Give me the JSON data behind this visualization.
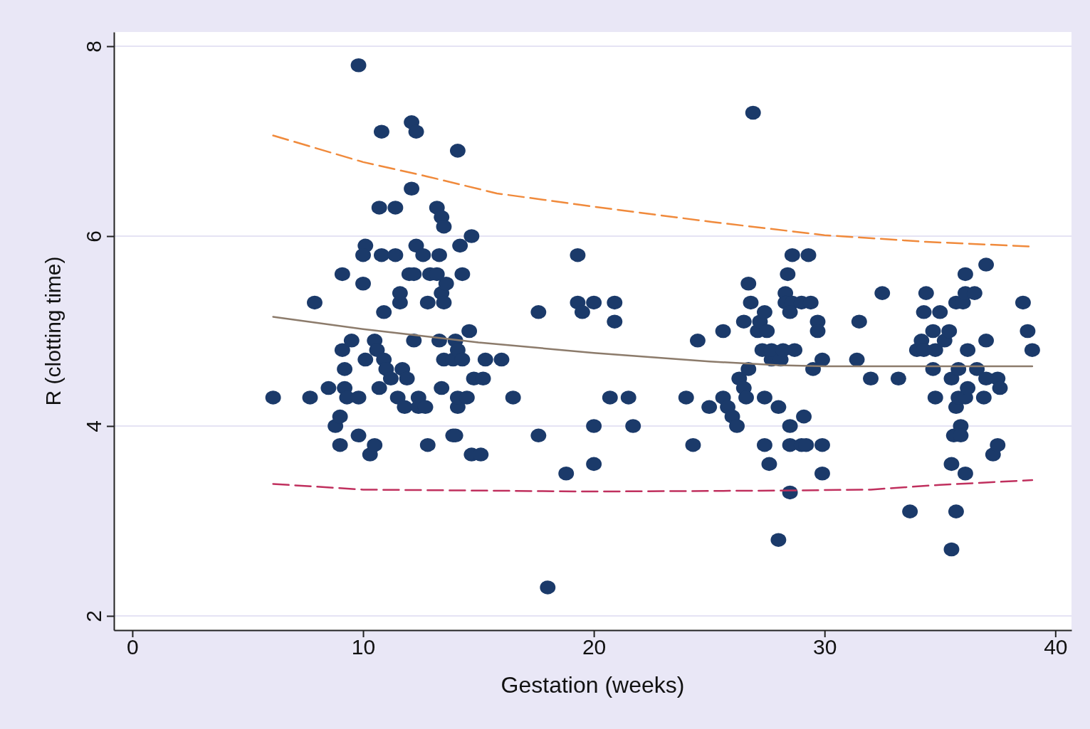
{
  "chart_data": {
    "type": "scatter",
    "xlabel": "Gestation (weeks)",
    "ylabel": "R (clotting time)",
    "xlim": [
      -0.8,
      40.7
    ],
    "ylim": [
      1.85,
      8.15
    ],
    "xticks": [
      0,
      10,
      20,
      30,
      40
    ],
    "yticks": [
      2,
      4,
      6,
      8
    ],
    "grid": "y",
    "series": [
      {
        "marker": "circle",
        "color": "#1b3a6a",
        "x": [
          6.1,
          7.7,
          7.9,
          8.5,
          8.8,
          9.0,
          9.0,
          9.1,
          9.1,
          9.2,
          9.2,
          9.3,
          9.5,
          9.8,
          9.8,
          9.8,
          10.0,
          10.1,
          10.0,
          10.1,
          10.3,
          10.5,
          10.5,
          10.6,
          10.7,
          10.8,
          10.8,
          10.7,
          10.9,
          10.9,
          11.0,
          11.2,
          11.4,
          11.4,
          11.5,
          11.6,
          11.6,
          11.7,
          11.8,
          11.9,
          12.0,
          12.1,
          12.1,
          12.2,
          12.2,
          12.3,
          12.3,
          12.4,
          12.4,
          12.6,
          12.7,
          12.8,
          12.8,
          12.9,
          13.2,
          13.2,
          13.3,
          13.3,
          13.4,
          13.4,
          13.4,
          13.5,
          13.5,
          13.5,
          13.6,
          13.9,
          13.9,
          14.0,
          14.0,
          14.1,
          14.1,
          14.1,
          14.1,
          14.2,
          14.3,
          14.3,
          14.5,
          14.6,
          14.7,
          14.7,
          14.8,
          15.1,
          15.2,
          15.3,
          16.0,
          16.5,
          17.6,
          17.6,
          18.0,
          18.8,
          19.3,
          19.3,
          19.5,
          20.0,
          20.0,
          20.0,
          20.7,
          20.9,
          20.9,
          21.5,
          21.7,
          24.0,
          24.3,
          24.5,
          25.0,
          25.6,
          25.6,
          25.8,
          26.0,
          26.2,
          26.3,
          26.5,
          26.5,
          26.6,
          26.7,
          26.7,
          26.8,
          26.9,
          27.1,
          27.2,
          27.3,
          27.4,
          27.4,
          27.4,
          27.5,
          27.6,
          27.7,
          27.7,
          28.0,
          28.0,
          28.1,
          28.2,
          28.3,
          28.3,
          28.4,
          28.5,
          28.5,
          28.6,
          28.6,
          28.7,
          28.5,
          28.5,
          29.0,
          29.0,
          29.1,
          29.2,
          29.3,
          29.4,
          29.5,
          29.7,
          29.7,
          29.9,
          29.9,
          29.9,
          31.4,
          31.5,
          32.0,
          32.5,
          33.2,
          33.7,
          34.0,
          34.2,
          34.3,
          34.3,
          34.4,
          34.7,
          34.7,
          34.8,
          34.8,
          35.0,
          35.2,
          35.4,
          35.5,
          35.5,
          35.5,
          35.6,
          35.7,
          35.7,
          35.7,
          35.8,
          35.8,
          35.9,
          35.9,
          36.0,
          36.1,
          36.1,
          36.1,
          36.1,
          36.2,
          36.2,
          36.5,
          36.6,
          36.9,
          37.0,
          37.0,
          37.0,
          37.3,
          37.5,
          37.5,
          37.6,
          38.6,
          38.8,
          39.0
        ],
        "values": [
          4.3,
          4.3,
          5.3,
          4.4,
          4.0,
          4.1,
          3.8,
          5.6,
          4.8,
          4.6,
          4.4,
          4.3,
          4.9,
          4.3,
          3.9,
          7.8,
          5.5,
          5.9,
          5.8,
          4.7,
          3.7,
          3.8,
          4.9,
          4.8,
          4.4,
          7.1,
          5.8,
          6.3,
          4.7,
          5.2,
          4.6,
          4.5,
          6.3,
          5.8,
          4.3,
          5.3,
          5.4,
          4.6,
          4.2,
          4.5,
          5.6,
          6.5,
          7.2,
          4.9,
          5.6,
          7.1,
          5.9,
          4.3,
          4.2,
          5.8,
          4.2,
          3.8,
          5.3,
          5.6,
          5.6,
          6.3,
          5.8,
          4.9,
          6.2,
          4.4,
          5.4,
          6.1,
          5.3,
          4.7,
          5.5,
          3.9,
          4.7,
          4.9,
          3.9,
          4.8,
          6.9,
          4.2,
          4.3,
          5.9,
          5.6,
          4.7,
          4.3,
          5.0,
          6.0,
          3.7,
          4.5,
          3.7,
          4.5,
          4.7,
          4.7,
          4.3,
          3.9,
          5.2,
          2.3,
          3.5,
          5.8,
          5.3,
          5.2,
          4.0,
          3.6,
          5.3,
          4.3,
          5.1,
          5.3,
          4.3,
          4.0,
          4.3,
          3.8,
          4.9,
          4.2,
          5.0,
          4.3,
          4.2,
          4.1,
          4.0,
          4.5,
          4.4,
          5.1,
          4.3,
          5.5,
          4.6,
          5.3,
          7.3,
          5.0,
          5.1,
          4.8,
          3.8,
          5.2,
          4.3,
          5.0,
          3.6,
          4.7,
          4.8,
          2.8,
          4.2,
          4.7,
          4.8,
          5.4,
          5.3,
          5.6,
          3.3,
          4.0,
          5.8,
          5.3,
          4.8,
          5.2,
          3.8,
          3.8,
          5.3,
          4.1,
          3.8,
          5.8,
          5.3,
          4.6,
          5.1,
          5.0,
          4.7,
          3.5,
          3.8,
          4.7,
          5.1,
          4.5,
          5.4,
          4.5,
          3.1,
          4.8,
          4.9,
          4.8,
          5.2,
          5.4,
          4.6,
          5.0,
          4.8,
          4.3,
          5.2,
          4.9,
          5.0,
          3.6,
          2.7,
          4.5,
          3.9,
          3.1,
          4.2,
          5.3,
          4.3,
          4.6,
          4.0,
          3.9,
          5.3,
          5.4,
          3.5,
          4.3,
          5.6,
          4.8,
          4.4,
          5.4,
          4.6,
          4.3,
          4.5,
          4.9,
          5.7,
          3.7,
          4.5,
          3.8,
          4.4,
          5.3,
          5.0,
          4.8
        ]
      },
      {
        "type": "line",
        "color": "#f08a3c",
        "line_style": "dashed",
        "x": [
          6.1,
          10,
          12.75,
          15.8,
          20,
          25.1,
          30,
          34.4,
          39
        ],
        "values": [
          7.06,
          6.78,
          6.63,
          6.45,
          6.31,
          6.15,
          6.01,
          5.94,
          5.89
        ]
      },
      {
        "type": "line",
        "color": "#8c7b6b",
        "line_style": "solid",
        "x": [
          6.1,
          10,
          15,
          20,
          25,
          28,
          30,
          35,
          39
        ],
        "values": [
          5.15,
          5.02,
          4.88,
          4.77,
          4.68,
          4.64,
          4.63,
          4.63,
          4.63
        ]
      },
      {
        "type": "line",
        "color": "#c0305e",
        "line_style": "dashed",
        "x": [
          6.1,
          10,
          20,
          28,
          32,
          35,
          39
        ],
        "values": [
          3.39,
          3.33,
          3.31,
          3.32,
          3.33,
          3.38,
          3.43
        ]
      }
    ]
  }
}
